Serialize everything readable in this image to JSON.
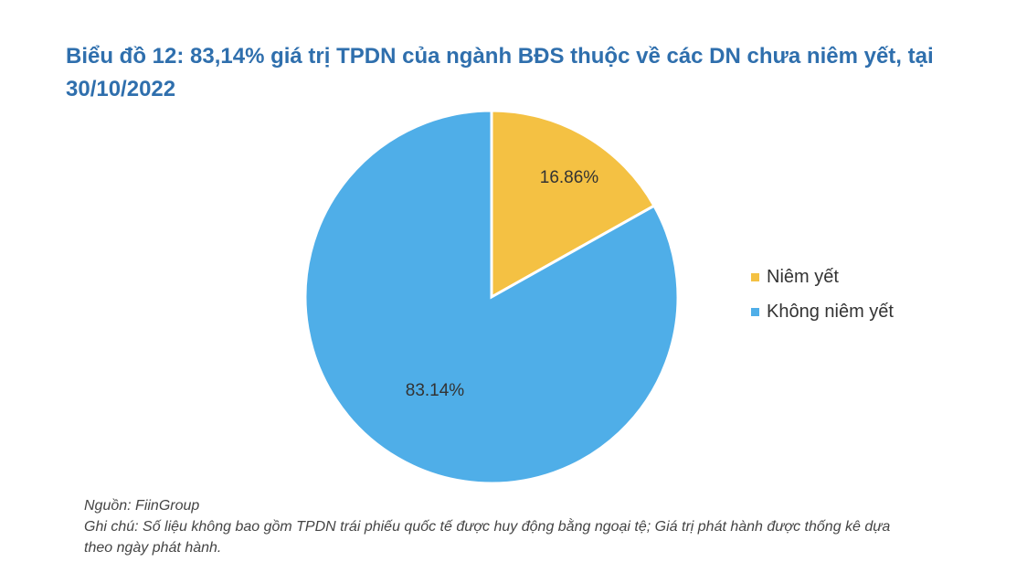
{
  "chart_data": {
    "type": "pie",
    "title": "Biểu đồ 12: 83,14% giá trị TPDN của ngành BĐS thuộc về các DN chưa niêm yết, tại 30/10/2022",
    "slices": [
      {
        "name": "Niêm yết",
        "value": 16.86,
        "label": "16.86%",
        "color": "#f4c143"
      },
      {
        "name": "Không niêm yết",
        "value": 83.14,
        "label": "83.14%",
        "color": "#4faee8"
      }
    ],
    "start_angle_deg": 0,
    "direction": "clockwise",
    "legend_position": "right"
  },
  "notes": {
    "source": "Nguồn: FiinGroup",
    "note": "Ghi chú: Số liệu không bao gồm TPDN trái phiếu quốc tế được huy động bằng ngoại tệ; Giá trị phát hành được thống kê dựa theo ngày phát hành."
  }
}
